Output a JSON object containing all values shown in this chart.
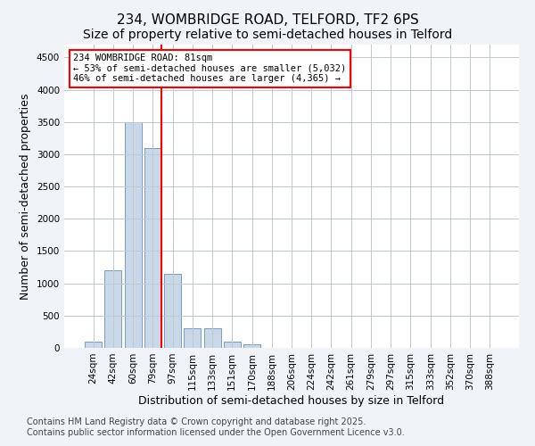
{
  "title1": "234, WOMBRIDGE ROAD, TELFORD, TF2 6PS",
  "title2": "Size of property relative to semi-detached houses in Telford",
  "xlabel": "Distribution of semi-detached houses by size in Telford",
  "ylabel": "Number of semi-detached properties",
  "categories": [
    "24sqm",
    "42sqm",
    "60sqm",
    "79sqm",
    "97sqm",
    "115sqm",
    "133sqm",
    "151sqm",
    "170sqm",
    "188sqm",
    "206sqm",
    "224sqm",
    "242sqm",
    "261sqm",
    "279sqm",
    "297sqm",
    "315sqm",
    "333sqm",
    "352sqm",
    "370sqm",
    "388sqm"
  ],
  "values": [
    100,
    1200,
    3500,
    3100,
    1150,
    310,
    310,
    100,
    50,
    5,
    5,
    2,
    1,
    0,
    0,
    0,
    0,
    0,
    0,
    0,
    0
  ],
  "bar_color": "#c8d8e8",
  "bar_edge_color": "#7a9cbf",
  "vline_x": 3,
  "vline_color": "red",
  "annotation_title": "234 WOMBRIDGE ROAD: 81sqm",
  "annotation_line1": "← 53% of semi-detached houses are smaller (5,032)",
  "annotation_line2": "46% of semi-detached houses are larger (4,365) →",
  "annotation_box_color": "white",
  "annotation_box_edgecolor": "red",
  "ylim": [
    0,
    4700
  ],
  "yticks": [
    0,
    500,
    1000,
    1500,
    2000,
    2500,
    3000,
    3500,
    4000,
    4500
  ],
  "footer1": "Contains HM Land Registry data © Crown copyright and database right 2025.",
  "footer2": "Contains public sector information licensed under the Open Government Licence v3.0.",
  "bg_color": "#f0f4f8",
  "plot_bg_color": "#ffffff",
  "title_fontsize": 11,
  "subtitle_fontsize": 10,
  "tick_fontsize": 7.5,
  "label_fontsize": 9,
  "footer_fontsize": 7
}
